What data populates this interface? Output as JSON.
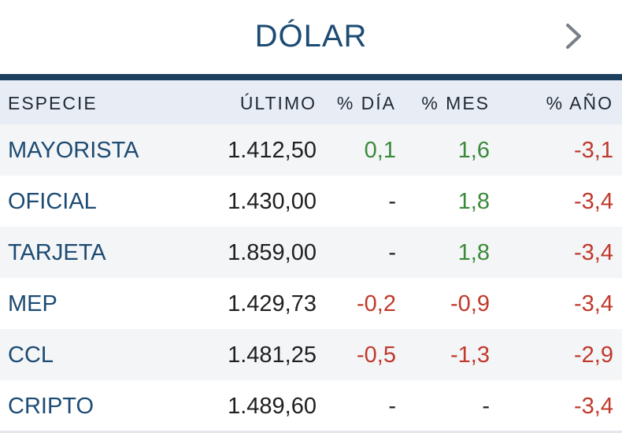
{
  "widget": {
    "title": "DÓLAR",
    "next_icon": "chevron-right-icon"
  },
  "columns": {
    "especie": "ESPECIE",
    "ultimo": "ÚLTIMO",
    "dia": "% DÍA",
    "mes": "% MES",
    "anio": "% AÑO"
  },
  "rows": [
    {
      "especie": "MAYORISTA",
      "ultimo": "1.412,50",
      "dia": "0,1",
      "mes": "1,6",
      "anio": "-3,1"
    },
    {
      "especie": "OFICIAL",
      "ultimo": "1.430,00",
      "dia": "-",
      "mes": "1,8",
      "anio": "-3,4"
    },
    {
      "especie": "TARJETA",
      "ultimo": "1.859,00",
      "dia": "-",
      "mes": "1,8",
      "anio": "-3,4"
    },
    {
      "especie": "MEP",
      "ultimo": "1.429,73",
      "dia": "-0,2",
      "mes": "-0,9",
      "anio": "-3,4"
    },
    {
      "especie": "CCL",
      "ultimo": "1.481,25",
      "dia": "-0,5",
      "mes": "-1,3",
      "anio": "-2,9"
    },
    {
      "especie": "CRIPTO",
      "ultimo": "1.489,60",
      "dia": "-",
      "mes": "-",
      "anio": "-3,4"
    }
  ],
  "colors": {
    "title": "#1c4b73",
    "rule": "#1c3f5e",
    "header_bg": "#e8ecf5",
    "positive": "#3a8a3a",
    "negative": "#c0392b"
  }
}
